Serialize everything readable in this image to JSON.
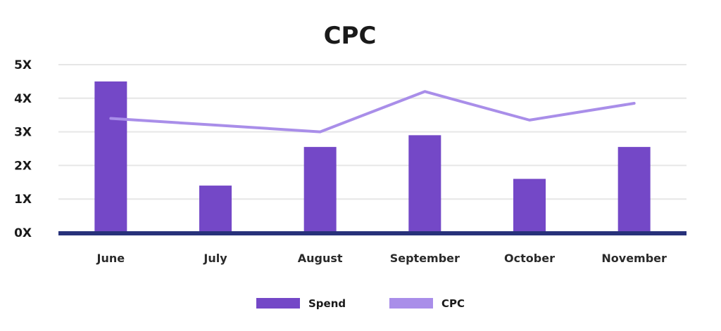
{
  "chart_data": {
    "type": "bar",
    "title": "CPC",
    "xlabel": "",
    "ylabel": "",
    "categories": [
      "June",
      "July",
      "August",
      "September",
      "October",
      "November"
    ],
    "ylim": [
      0,
      5
    ],
    "yticks": [
      "0X",
      "1X",
      "2X",
      "3X",
      "4X",
      "5X"
    ],
    "grid": true,
    "legend_position": "bottom-center",
    "series": [
      {
        "name": "Spend",
        "kind": "bar",
        "color": "#7448c7",
        "values": [
          4.5,
          1.4,
          2.55,
          2.9,
          1.6,
          2.55
        ]
      },
      {
        "name": "CPC",
        "kind": "line",
        "color": "#a98ee9",
        "values": [
          3.4,
          3.2,
          3.0,
          4.2,
          3.35,
          3.85
        ]
      }
    ],
    "colors": {
      "baseline": "#27317a",
      "grid": "#e6e6e6"
    }
  }
}
